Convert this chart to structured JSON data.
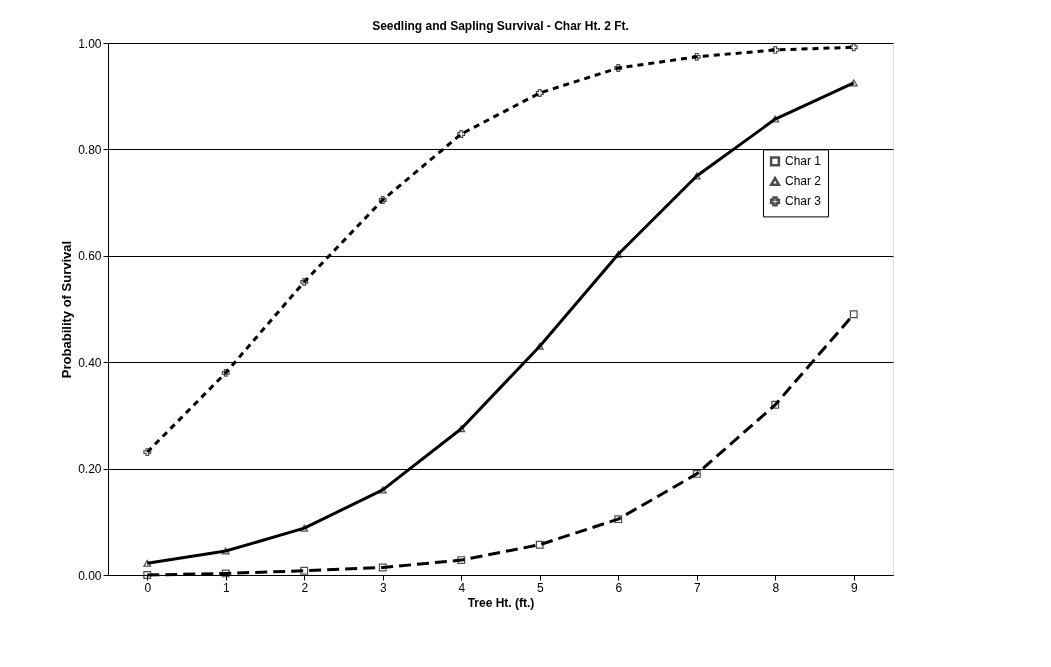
{
  "chart_data": {
    "type": "line",
    "title": "Seedling and Sapling Survival - Char Ht. 2 Ft.",
    "xlabel": "Tree Ht. (ft.)",
    "ylabel": "Probability of Survival",
    "categories": [
      "0",
      "1",
      "2",
      "3",
      "4",
      "5",
      "6",
      "7",
      "8",
      "9"
    ],
    "series": [
      {
        "name": "Char 1",
        "color": "#000000",
        "marker": "square",
        "line_style": "dashed",
        "values": [
          0.0,
          0.003,
          0.008,
          0.014,
          0.028,
          0.057,
          0.105,
          0.19,
          0.32,
          0.49
        ]
      },
      {
        "name": "Char 2",
        "color": "#000000",
        "marker": "triangle",
        "line_style": "solid",
        "values": [
          0.022,
          0.045,
          0.088,
          0.16,
          0.275,
          0.43,
          0.603,
          0.75,
          0.857,
          0.925
        ]
      },
      {
        "name": "Char 3",
        "color": "#000000",
        "marker": "cross",
        "line_style": "dotted",
        "values": [
          0.231,
          0.38,
          0.551,
          0.705,
          0.829,
          0.906,
          0.953,
          0.974,
          0.987,
          0.992
        ]
      }
    ],
    "ylim": [
      0,
      1
    ],
    "yticks": [
      {
        "value": 0,
        "label": "0.00"
      },
      {
        "value": 0.2,
        "label": "0.20"
      },
      {
        "value": 0.4,
        "label": "0.40"
      },
      {
        "value": 0.6,
        "label": "0.60"
      },
      {
        "value": 0.8,
        "label": "0.80"
      },
      {
        "value": 1,
        "label": "1.00"
      }
    ],
    "grid": "y",
    "legend": "right"
  }
}
